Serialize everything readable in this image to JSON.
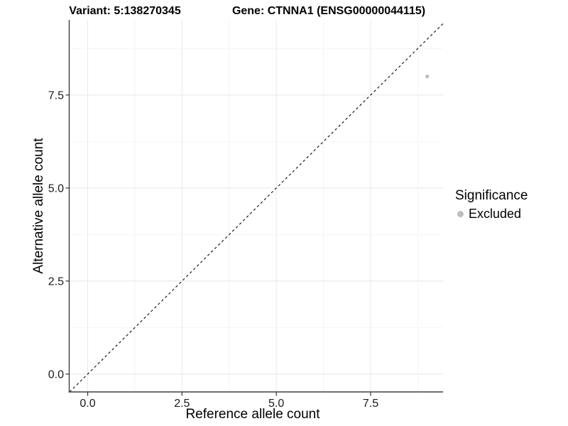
{
  "chart_data": {
    "type": "scatter",
    "title_left": "Variant: 5:138270345",
    "title_right": "Gene: CTNNA1 (ENSG00000044115)",
    "xlabel": "Reference allele count",
    "ylabel": "Alternative allele count",
    "xlim": [
      -0.48,
      9.42
    ],
    "ylim": [
      -0.48,
      9.52
    ],
    "x_ticks": {
      "values": [
        0,
        2.5,
        5,
        7.5
      ],
      "labels": [
        "0.0",
        "2.5",
        "5.0",
        "7.5"
      ]
    },
    "y_ticks": {
      "values": [
        0,
        2.5,
        5,
        7.5
      ],
      "labels": [
        "0.0",
        "2.5",
        "5.0",
        "7.5"
      ]
    },
    "x_minor_ticks": [
      1.25,
      3.75,
      6.25,
      8.75
    ],
    "y_minor_ticks": [
      1.25,
      3.75,
      6.25,
      8.75
    ],
    "grid": {
      "major": true,
      "minor": true
    },
    "reference_line": {
      "type": "identity",
      "style": "dashed"
    },
    "series": [
      {
        "name": "Excluded",
        "color": "#bdbdbd",
        "point_radius": 2.7,
        "points": [
          {
            "x": 9,
            "y": 8
          }
        ]
      }
    ],
    "legend": {
      "title": "Significance",
      "position": "right",
      "entries": [
        {
          "label": "Excluded",
          "color": "#bdbdbd"
        }
      ]
    },
    "colors": {
      "background": "#ffffff",
      "grid_major": "#e8e8e8",
      "grid_minor": "#f4f4f4",
      "axis": "#404040",
      "tick": "#333333",
      "text": "#1a1a1a",
      "reference_line": "#1a1a1a"
    }
  }
}
